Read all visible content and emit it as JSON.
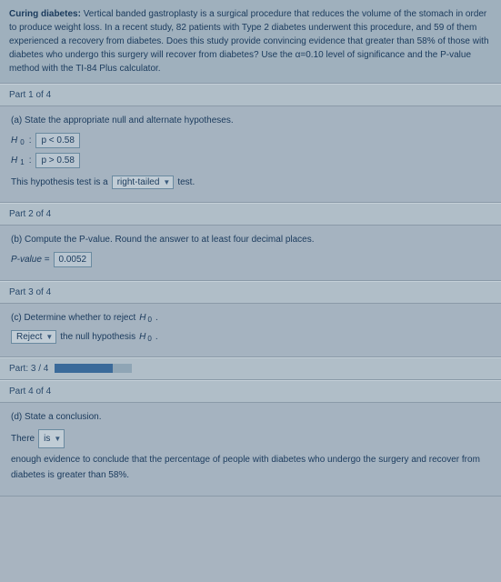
{
  "header": {
    "title": "Curing diabetes:",
    "text": " Vertical banded gastroplasty is a surgical procedure that reduces the volume of the stomach in order to produce weight loss. In a recent study, 82 patients with Type 2 diabetes underwent this procedure, and 59 of them experienced a recovery from diabetes. Does this study provide convincing evidence that greater than 58% of those with diabetes who undergo this surgery will recover from diabetes? Use the α=0.10 level of significance and the P-value method with the TI-84 Plus calculator."
  },
  "part1": {
    "bar": "Part 1 of 4",
    "prompt": "(a) State the appropriate null and alternate hypotheses.",
    "h0_label": "H",
    "h0_sub": "0",
    "h0_value": "p < 0.58",
    "h1_label": "H",
    "h1_sub": "1",
    "h1_value": "p > 0.58",
    "tail_pre": "This hypothesis test is a",
    "tail_value": "right-tailed",
    "tail_post": "test."
  },
  "part2": {
    "bar": "Part 2 of 4",
    "prompt": "(b) Compute the P-value. Round the answer to at least four decimal places.",
    "pv_label": "P-value =",
    "pv_value": "0.0052"
  },
  "part3": {
    "bar": "Part 3 of 4",
    "prompt_pre": "(c) Determine whether to reject ",
    "prompt_h": "H",
    "prompt_sub": "0",
    "prompt_dot": ".",
    "reject_value": "Reject",
    "mid_text": "the null hypothesis ",
    "mid_h": "H",
    "mid_sub": "0",
    "mid_dot": "."
  },
  "progress": {
    "label": "Part: 3 / 4",
    "fill_pct": 75
  },
  "part4": {
    "bar": "Part 4 of 4",
    "prompt": "(d) State a conclusion.",
    "pre": "There",
    "dd_value": "is",
    "post": "enough evidence to conclude that the percentage of people with diabetes who undergo the surgery and recover from diabetes is greater than 58%."
  }
}
